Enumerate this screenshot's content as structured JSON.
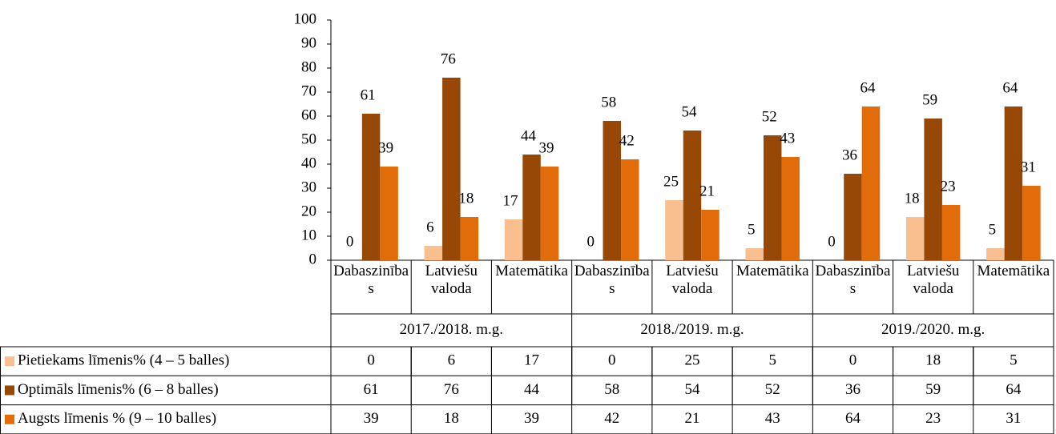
{
  "chart_data": {
    "type": "bar",
    "categories": [
      "Dabaszinības",
      "Latviešu valoda",
      "Matemātika",
      "Dabaszinības",
      "Latviešu valoda",
      "Matemātika",
      "Dabaszinības",
      "Latviešu valoda",
      "Matemātika"
    ],
    "groups": [
      "2017./2018. m.g.",
      "2018./2019. m.g.",
      "2019./2020. m.g."
    ],
    "series": [
      {
        "name": "Pietiekams līmenis% (4 – 5 balles)",
        "color": "#f9bf8f",
        "values": [
          0,
          6,
          17,
          0,
          25,
          5,
          0,
          18,
          5
        ]
      },
      {
        "name": "Optimāls līmenis% (6 – 8 balles)",
        "color": "#974806",
        "values": [
          61,
          76,
          44,
          58,
          54,
          52,
          36,
          59,
          64
        ]
      },
      {
        "name": "Augsts līmenis % (9 – 10 balles)",
        "color": "#e36c0a",
        "values": [
          39,
          18,
          39,
          42,
          21,
          43,
          64,
          23,
          31
        ]
      }
    ],
    "ylim": [
      0,
      100
    ],
    "yticks": [
      0,
      10,
      20,
      30,
      40,
      50,
      60,
      70,
      80,
      90,
      100
    ],
    "grid": false
  }
}
